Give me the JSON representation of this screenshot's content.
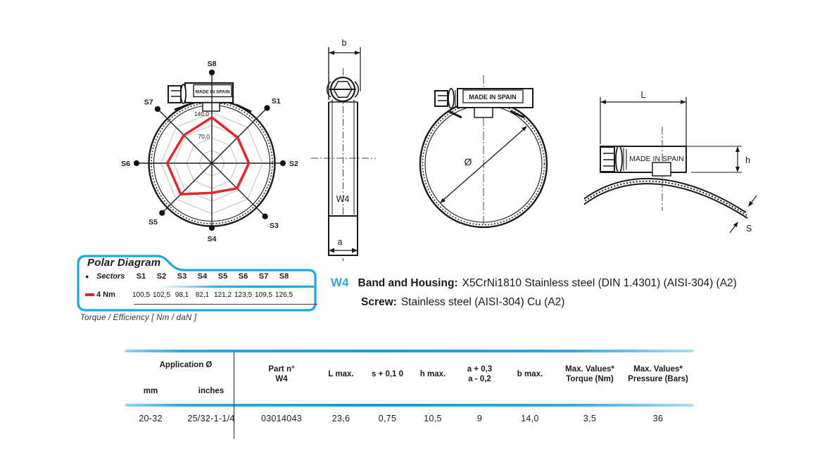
{
  "colors": {
    "accent_blue": "#29abe2",
    "series_red": "#e8212a",
    "grid_gray": "#c5c5c5"
  },
  "chart_data": {
    "type": "radar",
    "title": "Polar Diagram",
    "categories": [
      "S1",
      "S2",
      "S3",
      "S4",
      "S5",
      "S6",
      "S7",
      "S8"
    ],
    "series": [
      {
        "name": "4 Nm",
        "color": "#e8212a",
        "values": [
          100.5,
          102.5,
          98.1,
          82.1,
          121.2,
          123.5,
          109.5,
          126.5
        ]
      }
    ],
    "rings": [
      35,
      70,
      105,
      140
    ],
    "axis_max": 140,
    "ring_label_outer": "140,0",
    "ring_label_inner": "70,0",
    "housing_text": "MADE IN SPAIN",
    "caption": "Torque / Efficiency [ Nm / daN ]",
    "legend": {
      "title": "Polar Diagram",
      "sectors_label": "Sectors",
      "series_label": "4 Nm",
      "values_display": [
        "100,5",
        "102,5",
        "98,1",
        "82,1",
        "121,2",
        "123,5",
        "109,5",
        "126,5"
      ]
    }
  },
  "drawings": {
    "front": {
      "dim_top": "b",
      "dim_bottom": "a",
      "band_label": "W4"
    },
    "circle": {
      "diameter": "Ø",
      "made_in": "MADE IN SPAIN"
    },
    "detail": {
      "length": "L",
      "height": "h",
      "thickness": "S",
      "made_in": "MADE IN SPAIN"
    }
  },
  "description": {
    "code": "W4",
    "items": [
      {
        "label": "Band and Housing:",
        "text": "X5CrNi1810 Stainless steel (DIN 1.4301) (AISI-304) (A2)"
      },
      {
        "label": "Screw:",
        "text": "Stainless steel (AISI-304) Cu (A2)"
      }
    ]
  },
  "table": {
    "group_header": "Application Ø",
    "sub_headers": [
      "mm",
      "inches"
    ],
    "headers": [
      [
        "Part n°",
        "W4"
      ],
      [
        "L max."
      ],
      [
        "s + 0,1 0"
      ],
      [
        "h max."
      ],
      [
        "a + 0,3",
        "a - 0,2"
      ],
      [
        "b max."
      ],
      [
        "Max. Values*",
        "Torque (Nm)"
      ],
      [
        "Max. Values*",
        "Pressure (Bars)"
      ]
    ],
    "row": [
      "20-32",
      "25/32-1-1/4",
      "03014043",
      "23,6",
      "0,75",
      "10,5",
      "9",
      "14,0",
      "3,5",
      "36"
    ]
  }
}
